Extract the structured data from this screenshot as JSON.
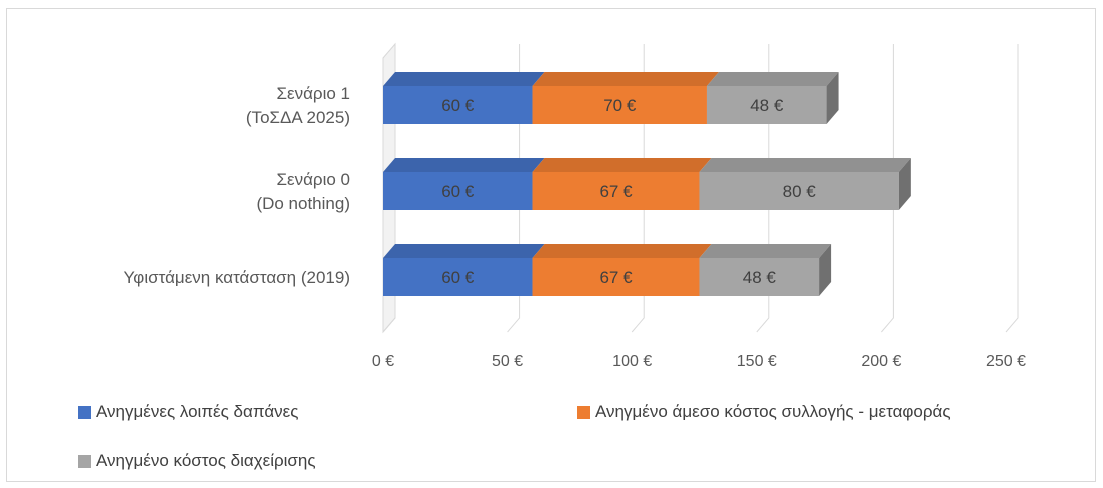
{
  "chart_data": {
    "type": "bar",
    "orientation": "horizontal",
    "stacked": true,
    "categories": [
      "Σενάριο 1 (ΤοΣΔΑ 2025)",
      "Σενάριο 0 (Do nothing)",
      "Υφιστάμενη κατάσταση (2019)"
    ],
    "category_label_lines": [
      [
        "Σενάριο 1",
        "(ΤοΣΔΑ 2025)"
      ],
      [
        "Σενάριο 0",
        "(Do nothing)"
      ],
      [
        "Υφιστάμενη κατάσταση (2019)"
      ]
    ],
    "series": [
      {
        "name": "Ανηγμένες λοιπές δαπάνες",
        "color": "#4472c4",
        "values": [
          60,
          60,
          60
        ],
        "labels": [
          "60 €",
          "60 €",
          "60 €"
        ]
      },
      {
        "name": "Ανηγμένο άμεσο κόστος συλλογής - μεταφοράς",
        "color": "#ed7d31",
        "values": [
          70,
          67,
          67
        ],
        "labels": [
          "70 €",
          "67 €",
          "67 €"
        ]
      },
      {
        "name": "Ανηγμένο κόστος διαχείρισης",
        "color": "#a5a5a5",
        "values": [
          48,
          80,
          48
        ],
        "labels": [
          "48 €",
          "80 €",
          "48 €"
        ]
      }
    ],
    "xlim": [
      0,
      250
    ],
    "xticks": [
      0,
      50,
      100,
      150,
      200,
      250
    ],
    "xtick_labels": [
      "0 €",
      "50 €",
      "100 €",
      "150 €",
      "200 €",
      "250 €"
    ],
    "grid": true,
    "style": "3d",
    "legend_position": "bottom"
  }
}
